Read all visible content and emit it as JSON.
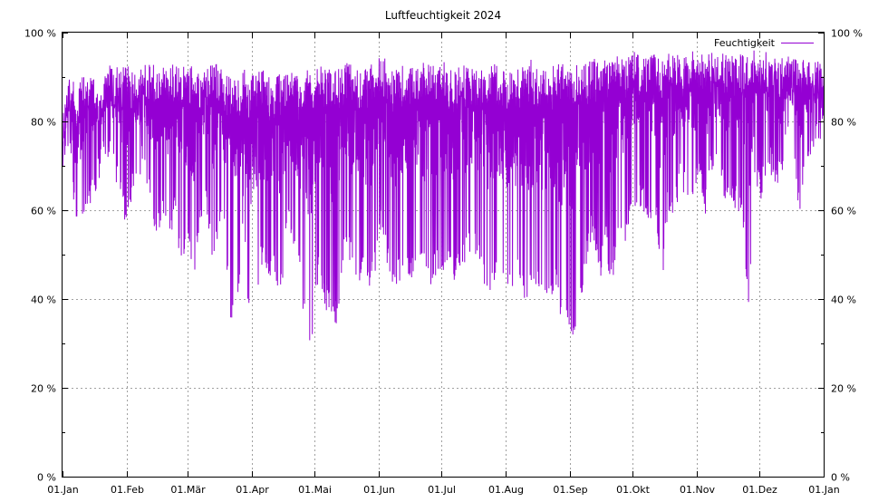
{
  "chart_data": {
    "type": "line",
    "title": "Luftfeuchtigkeit 2024",
    "xlabel": "",
    "ylabel": "",
    "ylim": [
      0,
      100
    ],
    "xlim": [
      "2024-01-01",
      "2025-01-01"
    ],
    "grid": true,
    "legend_position": "top-right",
    "y_ticks": [
      "0 %",
      "20 %",
      "40 %",
      "60 %",
      "80 %",
      "100 %"
    ],
    "x_ticks": [
      "01.Jan",
      "01.Feb",
      "01.Mär",
      "01.Apr",
      "01.Mai",
      "01.Jun",
      "01.Jul",
      "01.Aug",
      "01.Sep",
      "01.Okt",
      "01.Nov",
      "01.Dez",
      "01.Jan"
    ],
    "x_tick_dates": [
      "2024-01-01",
      "2024-02-01",
      "2024-03-01",
      "2024-04-01",
      "2024-05-01",
      "2024-06-01",
      "2024-07-01",
      "2024-08-01",
      "2024-09-01",
      "2024-10-01",
      "2024-11-01",
      "2024-12-01",
      "2025-01-01"
    ],
    "series": [
      {
        "name": "Feuchtigkeit",
        "color": "#9400d3",
        "x": [
          "2024-01-01",
          "2024-01-04",
          "2024-01-07",
          "2024-01-10",
          "2024-01-13",
          "2024-01-16",
          "2024-01-19",
          "2024-01-22",
          "2024-01-25",
          "2024-01-28",
          "2024-01-31",
          "2024-02-03",
          "2024-02-06",
          "2024-02-09",
          "2024-02-12",
          "2024-02-15",
          "2024-02-18",
          "2024-02-21",
          "2024-02-24",
          "2024-02-27",
          "2024-03-01",
          "2024-03-04",
          "2024-03-07",
          "2024-03-10",
          "2024-03-13",
          "2024-03-16",
          "2024-03-19",
          "2024-03-22",
          "2024-03-25",
          "2024-03-28",
          "2024-03-31",
          "2024-04-03",
          "2024-04-06",
          "2024-04-09",
          "2024-04-12",
          "2024-04-15",
          "2024-04-18",
          "2024-04-21",
          "2024-04-24",
          "2024-04-27",
          "2024-04-30",
          "2024-05-03",
          "2024-05-06",
          "2024-05-09",
          "2024-05-12",
          "2024-05-15",
          "2024-05-18",
          "2024-05-21",
          "2024-05-24",
          "2024-05-27",
          "2024-05-30",
          "2024-06-02",
          "2024-06-05",
          "2024-06-08",
          "2024-06-11",
          "2024-06-14",
          "2024-06-17",
          "2024-06-20",
          "2024-06-23",
          "2024-06-26",
          "2024-06-29",
          "2024-07-02",
          "2024-07-05",
          "2024-07-08",
          "2024-07-11",
          "2024-07-14",
          "2024-07-17",
          "2024-07-20",
          "2024-07-23",
          "2024-07-26",
          "2024-07-29",
          "2024-08-01",
          "2024-08-04",
          "2024-08-07",
          "2024-08-10",
          "2024-08-13",
          "2024-08-16",
          "2024-08-19",
          "2024-08-22",
          "2024-08-25",
          "2024-08-28",
          "2024-08-31",
          "2024-09-03",
          "2024-09-06",
          "2024-09-09",
          "2024-09-12",
          "2024-09-15",
          "2024-09-18",
          "2024-09-21",
          "2024-09-24",
          "2024-09-27",
          "2024-09-30",
          "2024-10-03",
          "2024-10-06",
          "2024-10-09",
          "2024-10-12",
          "2024-10-15",
          "2024-10-18",
          "2024-10-21",
          "2024-10-24",
          "2024-10-27",
          "2024-10-30",
          "2024-11-02",
          "2024-11-05",
          "2024-11-08",
          "2024-11-11",
          "2024-11-14",
          "2024-11-17",
          "2024-11-20",
          "2024-11-23",
          "2024-11-26",
          "2024-11-29",
          "2024-12-02",
          "2024-12-05",
          "2024-12-08",
          "2024-12-11",
          "2024-12-14",
          "2024-12-17",
          "2024-12-20",
          "2024-12-23",
          "2024-12-26",
          "2024-12-29",
          "2025-01-01"
        ],
        "daily_min": [
          66,
          75,
          56,
          54,
          60,
          62,
          68,
          72,
          70,
          62,
          57,
          62,
          66,
          70,
          62,
          52,
          58,
          48,
          60,
          44,
          52,
          44,
          58,
          60,
          48,
          55,
          52,
          32,
          38,
          60,
          28,
          40,
          48,
          42,
          45,
          40,
          55,
          50,
          44,
          30,
          28,
          45,
          38,
          36,
          33,
          50,
          48,
          44,
          44,
          42,
          45,
          55,
          48,
          42,
          44,
          46,
          44,
          52,
          44,
          42,
          46,
          42,
          48,
          43,
          46,
          50,
          50,
          45,
          40,
          43,
          46,
          42,
          42,
          44,
          38,
          40,
          44,
          37,
          38,
          44,
          30,
          32,
          31,
          38,
          48,
          55,
          42,
          52,
          40,
          55,
          52,
          56,
          60,
          60,
          55,
          60,
          42,
          60,
          58,
          65,
          62,
          60,
          66,
          58,
          68,
          70,
          62,
          62,
          60,
          57,
          35,
          67,
          62,
          70,
          66,
          65,
          73,
          75,
          57,
          70,
          72,
          74,
          78
        ],
        "daily_max": [
          82,
          92,
          88,
          90,
          90,
          92,
          88,
          93,
          93,
          92,
          93,
          92,
          90,
          93,
          93,
          93,
          92,
          93,
          94,
          92,
          93,
          93,
          90,
          92,
          93,
          94,
          92,
          90,
          90,
          92,
          90,
          92,
          92,
          90,
          90,
          91,
          92,
          92,
          90,
          92,
          91,
          92,
          93,
          92,
          93,
          93,
          94,
          93,
          92,
          92,
          94,
          95,
          94,
          92,
          92,
          93,
          93,
          92,
          94,
          93,
          92,
          94,
          92,
          92,
          94,
          92,
          93,
          92,
          93,
          94,
          93,
          92,
          92,
          92,
          93,
          94,
          93,
          93,
          92,
          93,
          94,
          93,
          92,
          94,
          93,
          94,
          95,
          94,
          95,
          95,
          94,
          95,
          96,
          95,
          96,
          96,
          95,
          96,
          96,
          95,
          95,
          96,
          96,
          95,
          96,
          95,
          96,
          95,
          96,
          95,
          96,
          96,
          95,
          96,
          95,
          94,
          95,
          94,
          95,
          94,
          93,
          94,
          92
        ]
      }
    ]
  }
}
